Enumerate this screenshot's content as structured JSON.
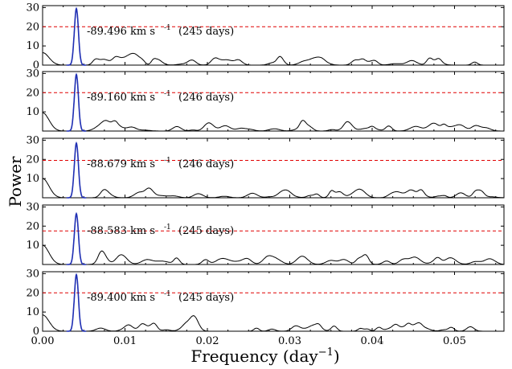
{
  "chart_data": {
    "type": "line",
    "xlabel": "Frequency (day⁻¹)",
    "ylabel": "Power",
    "xlim": [
      0.0,
      0.056
    ],
    "ylim": [
      0,
      31
    ],
    "x_ticks": [
      "0.00",
      "0.01",
      "0.02",
      "0.03",
      "0.04",
      "0.05"
    ],
    "x_tick_values": [
      0.0,
      0.01,
      0.02,
      0.03,
      0.04,
      0.05
    ],
    "y_ticks": [
      "10",
      "20",
      "30"
    ],
    "y_tick_values": [
      10,
      20,
      30
    ],
    "panel_y_ticks": [
      [
        "0",
        "10",
        "20",
        "30"
      ],
      [
        "10",
        "20",
        "30"
      ],
      [
        "10",
        "20",
        "30"
      ],
      [
        "10",
        "20",
        "30"
      ],
      [
        "0",
        "10",
        "20",
        "30"
      ]
    ],
    "panel_y_tick_values": [
      [
        0,
        10,
        20,
        30
      ],
      [
        10,
        20,
        30
      ],
      [
        10,
        20,
        30
      ],
      [
        10,
        20,
        30
      ],
      [
        0,
        10,
        20,
        30
      ]
    ],
    "colors": {
      "periodogram": "#000000",
      "fit": "#1f2fb4",
      "threshold": "#e00000"
    },
    "panels": [
      {
        "annotation_velocity": "-89.496 km s",
        "annotation_unit_exp": "-1",
        "annotation_period": "(245 days)",
        "peak_power": 29.5,
        "threshold": 20.0,
        "low_freq_power": 6.5,
        "peak_frequency": 0.0041
      },
      {
        "annotation_velocity": "-89.160 km s",
        "annotation_unit_exp": "-1",
        "annotation_period": "(246 days)",
        "peak_power": 29.5,
        "threshold": 20.0,
        "low_freq_power": 9.5,
        "peak_frequency": 0.0041
      },
      {
        "annotation_velocity": "-88.679 km s",
        "annotation_unit_exp": "-1",
        "annotation_period": "(246 days)",
        "peak_power": 28.5,
        "threshold": 19.5,
        "low_freq_power": 10.0,
        "peak_frequency": 0.0041
      },
      {
        "annotation_velocity": "-88.583 km s",
        "annotation_unit_exp": "-1",
        "annotation_period": "(245 days)",
        "peak_power": 26.5,
        "threshold": 17.5,
        "low_freq_power": 10.0,
        "peak_frequency": 0.0041
      },
      {
        "annotation_velocity": "-89.400 km s",
        "annotation_unit_exp": "-1",
        "annotation_period": "(245 days)",
        "peak_power": 29.5,
        "threshold": 20.0,
        "low_freq_power": 8.5,
        "peak_frequency": 0.0041
      }
    ]
  }
}
